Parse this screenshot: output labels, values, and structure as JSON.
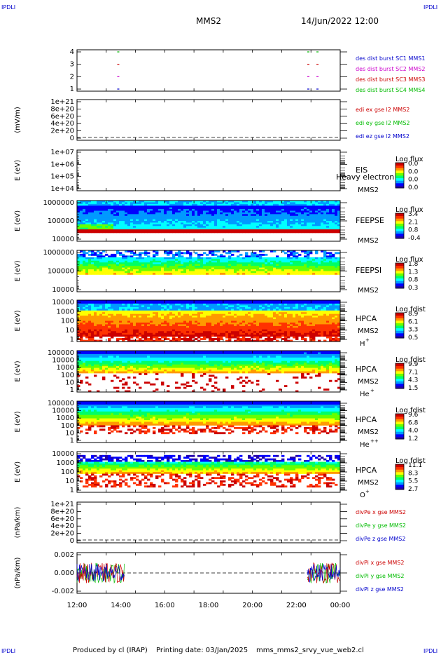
{
  "header": {
    "corner_label": "IPDLI",
    "spacecraft": "MMS2",
    "datetime": "14/Jun/2022 12:00"
  },
  "footer": {
    "producer": "Produced by cl (IRAP)",
    "printing": "Printing date: 03/Jan/2025",
    "file": "mms_mms2_srvy_vue_web2.cl"
  },
  "colors": {
    "red": "#cc0000",
    "green": "#00bb00",
    "blue": "#0000cc",
    "magenta": "#cc00cc",
    "axis": "#000000",
    "spectrogram_scale": [
      "#2200aa",
      "#0000ff",
      "#0099ff",
      "#00ffff",
      "#00ff66",
      "#66ff00",
      "#ffff00",
      "#ff9900",
      "#ff3300",
      "#cc0000"
    ]
  },
  "chart_data": [
    {
      "id": "p1",
      "type": "scatter",
      "xlabel": "",
      "ylabel": "",
      "yticks": [
        "4",
        "3",
        "2",
        "1"
      ],
      "ylim": [
        0.5,
        4.5
      ],
      "legend": [
        {
          "text": "des dist burst SC1 MMS1",
          "color": "blue"
        },
        {
          "text": "des dist burst SC2 MMS2",
          "color": "magenta"
        },
        {
          "text": "des dist burst SC3 MMS3",
          "color": "red"
        },
        {
          "text": "des dist burst SC4 MMS4",
          "color": "green"
        }
      ],
      "intervals": [
        {
          "sc": 4,
          "times": [
            "13:50",
            "22:30",
            "22:55"
          ],
          "color": "green"
        },
        {
          "sc": 3,
          "times": [
            "13:50",
            "22:30",
            "22:55"
          ],
          "color": "red"
        },
        {
          "sc": 2,
          "times": [
            "13:50",
            "22:30",
            "22:55"
          ],
          "color": "magenta"
        },
        {
          "sc": 1,
          "times": [
            "13:50",
            "22:30",
            "22:55"
          ],
          "color": "blue"
        }
      ]
    },
    {
      "id": "p2",
      "type": "line",
      "ylabel": "(mV/m)",
      "yticks": [
        "1e+21",
        "8e+20",
        "6e+20",
        "4e+20",
        "2e+20",
        "0"
      ],
      "ylim": [
        0,
        1e+21
      ],
      "zero_line": true,
      "legend": [
        {
          "text": "edi ex gse l2 MMS2",
          "color": "red"
        },
        {
          "text": "edi ey gse l2 MMS2",
          "color": "green"
        },
        {
          "text": "edi ez gse l2 MMS2",
          "color": "blue"
        }
      ]
    },
    {
      "id": "p3",
      "type": "heatmap",
      "ylabel": "E (eV)",
      "log": true,
      "yticks": [
        "1e+07",
        "1e+06",
        "1e+05",
        "1e+04"
      ],
      "instrument": "EIS",
      "subtitle": "MMS2",
      "overlay_text": "Heavy electron te",
      "colorbar": {
        "title": "Log flux",
        "ticks": [
          "0.0",
          "0.0",
          "0.0",
          "0.0"
        ]
      },
      "fill": "empty"
    },
    {
      "id": "p4",
      "type": "heatmap",
      "ylabel": "E (eV)",
      "log": true,
      "yticks": [
        "1000000",
        "100000",
        "10000"
      ],
      "instrument": "FEEPSE",
      "subtitle": "MMS2",
      "colorbar": {
        "title": "Log flux",
        "ticks": [
          "3.4",
          "2.1",
          "0.8",
          "-0.4"
        ]
      },
      "fill": "feepse"
    },
    {
      "id": "p5",
      "type": "heatmap",
      "ylabel": "E (eV)",
      "log": true,
      "yticks": [
        "1000000",
        "100000",
        "10000"
      ],
      "instrument": "FEEPSI",
      "subtitle": "MMS2",
      "colorbar": {
        "title": "Log flux",
        "ticks": [
          "1.8",
          "1.3",
          "0.8",
          "0.3"
        ]
      },
      "fill": "feepsi"
    },
    {
      "id": "p6",
      "type": "heatmap",
      "ylabel": "E (eV)",
      "log": true,
      "yticks": [
        "10000",
        "1000",
        "100",
        "10",
        "1"
      ],
      "instrument": "HPCA",
      "subtitle": "MMS2",
      "species": "H",
      "charge": "+",
      "colorbar": {
        "title": "Log fdist",
        "ticks": [
          "8.9",
          "6.1",
          "3.3",
          "0.5"
        ]
      },
      "fill": "hplus"
    },
    {
      "id": "p7",
      "type": "heatmap",
      "ylabel": "E (eV)",
      "log": true,
      "yticks": [
        "100000",
        "10000",
        "1000",
        "100",
        "10",
        "1"
      ],
      "instrument": "HPCA",
      "subtitle": "MMS2",
      "species": "He",
      "charge": "+",
      "colorbar": {
        "title": "Log fdist",
        "ticks": [
          "9.9",
          "7.1",
          "4.3",
          "1.5"
        ]
      },
      "fill": "heplus"
    },
    {
      "id": "p8",
      "type": "heatmap",
      "ylabel": "E (eV)",
      "log": true,
      "yticks": [
        "100000",
        "10000",
        "1000",
        "100",
        "10",
        "1"
      ],
      "instrument": "HPCA",
      "subtitle": "MMS2",
      "species": "He",
      "charge": "++",
      "colorbar": {
        "title": "Log fdist",
        "ticks": [
          "9.6",
          "6.8",
          "4.0",
          "1.2"
        ]
      },
      "fill": "heplusplus"
    },
    {
      "id": "p9",
      "type": "heatmap",
      "ylabel": "E (eV)",
      "log": true,
      "yticks": [
        "10000",
        "1000",
        "100",
        "10",
        "1"
      ],
      "instrument": "HPCA",
      "subtitle": "MMS2",
      "species": "O",
      "charge": "+",
      "colorbar": {
        "title": "Log fdist",
        "ticks": [
          "11.1",
          "8.3",
          "5.5",
          "2.7"
        ]
      },
      "fill": "oplus"
    },
    {
      "id": "p10",
      "type": "line",
      "ylabel": "(nPa/km)",
      "yticks": [
        "1e+21",
        "8e+20",
        "6e+20",
        "4e+20",
        "2e+20",
        "0"
      ],
      "ylim": [
        0,
        1e+21
      ],
      "zero_line": true,
      "legend": [
        {
          "text": "divPe x gse MMS2",
          "color": "red"
        },
        {
          "text": "divPe y gse MMS2",
          "color": "green"
        },
        {
          "text": "divPe z gse MMS2",
          "color": "blue"
        }
      ]
    },
    {
      "id": "p11",
      "type": "line",
      "ylabel": "(nPa/km)",
      "yticks": [
        "0.002",
        "0.000",
        "-0.002"
      ],
      "ylim": [
        -0.003,
        0.003
      ],
      "zero_line": true,
      "legend": [
        {
          "text": "divPi x gse MMS2",
          "color": "red"
        },
        {
          "text": "divPi y gse MMS2",
          "color": "green"
        },
        {
          "text": "divPi z gse MMS2",
          "color": "blue"
        }
      ],
      "data_intervals": [
        [
          "12:00",
          "14:10"
        ],
        [
          "22:30",
          "00:00"
        ]
      ],
      "amplitude": 0.0015
    }
  ],
  "time_axis": {
    "ticks": [
      "12:00",
      "14:00",
      "16:00",
      "18:00",
      "20:00",
      "22:00",
      "00:00"
    ],
    "range_hours": [
      12,
      24
    ]
  }
}
